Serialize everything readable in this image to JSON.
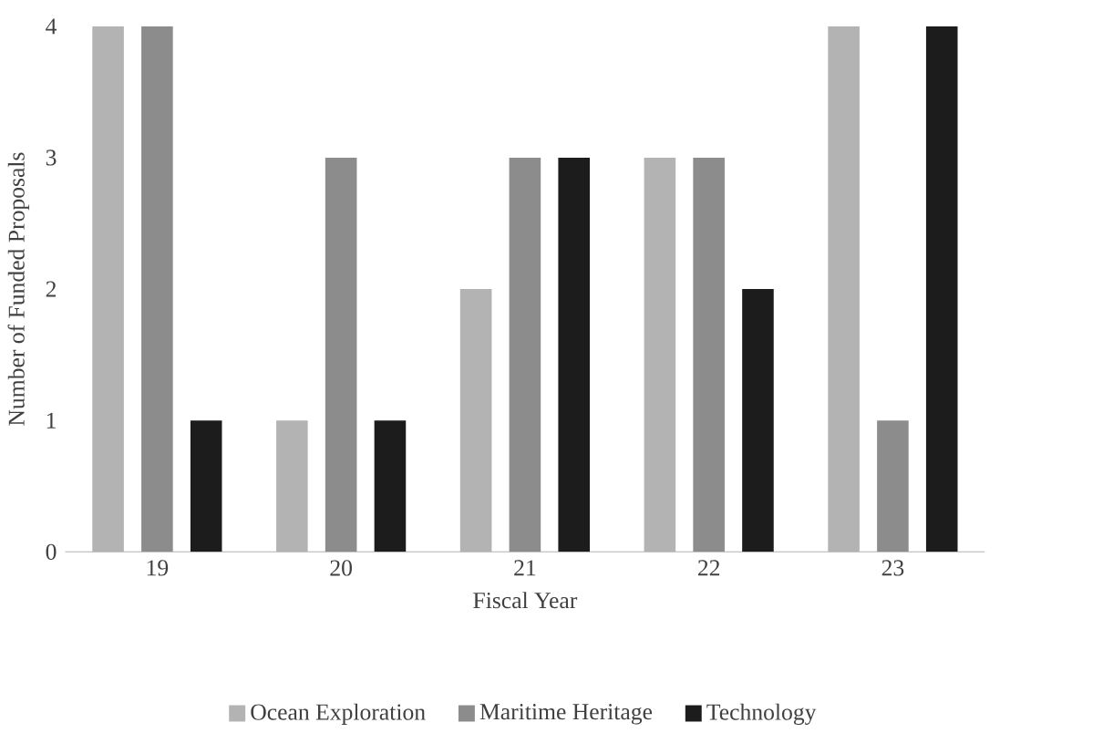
{
  "chart_data": {
    "type": "bar",
    "xlabel": "Fiscal Year",
    "ylabel": "Number of Funded Proposals",
    "categories": [
      "19",
      "20",
      "21",
      "22",
      "23"
    ],
    "series": [
      {
        "name": "Ocean Exploration",
        "color": "#b3b3b3",
        "values": [
          4,
          1,
          2,
          3,
          4
        ]
      },
      {
        "name": "Maritime Heritage",
        "color": "#8c8c8c",
        "values": [
          4,
          3,
          3,
          3,
          1
        ]
      },
      {
        "name": "Technology",
        "color": "#1c1c1c",
        "values": [
          1,
          1,
          3,
          2,
          4
        ]
      }
    ],
    "ylim": [
      0,
      4
    ],
    "yticks": [
      0,
      1,
      2,
      3,
      4
    ],
    "legend": "bottom"
  }
}
